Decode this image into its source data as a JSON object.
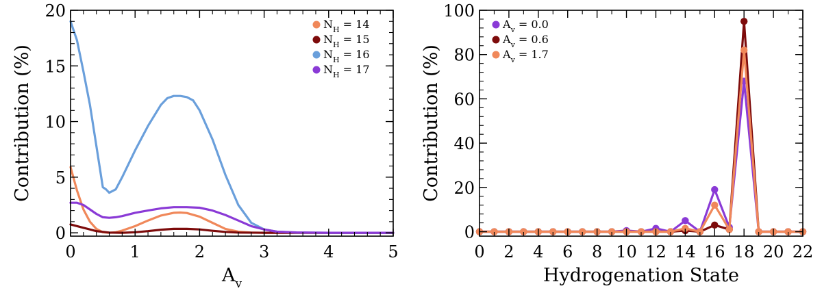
{
  "chart_data": [
    {
      "type": "line",
      "xlabel": "A",
      "xlabel_sub": "v",
      "ylabel": "Contribution (%)",
      "xlim": [
        0,
        5
      ],
      "ylim": [
        -0.3,
        20
      ],
      "xticks": [
        "0",
        "1",
        "2",
        "3",
        "4",
        "5"
      ],
      "yticks": [
        "0",
        "5",
        "10",
        "15",
        "20"
      ],
      "legend_position": "top-right",
      "series": [
        {
          "name": "N_H = 14",
          "legend_main": "N",
          "legend_sub": "H",
          "legend_value": " = 14",
          "color": "#f0885a",
          "x": [
            0,
            0.1,
            0.2,
            0.3,
            0.4,
            0.5,
            0.6,
            0.7,
            0.8,
            1.0,
            1.2,
            1.4,
            1.6,
            1.7,
            1.8,
            2.0,
            2.2,
            2.4,
            2.6,
            2.8,
            3.0,
            3.5,
            4.0,
            4.5,
            5.0
          ],
          "y": [
            5.9,
            3.8,
            2.1,
            1.0,
            0.35,
            0.05,
            0.0,
            0.05,
            0.2,
            0.6,
            1.1,
            1.55,
            1.8,
            1.82,
            1.78,
            1.45,
            0.9,
            0.35,
            0.1,
            0.02,
            0.0,
            0.0,
            0.0,
            0.0,
            0.0
          ]
        },
        {
          "name": "N_H = 15",
          "legend_main": "N",
          "legend_sub": "H",
          "legend_value": " = 15",
          "color": "#7d0b0b",
          "x": [
            0,
            0.2,
            0.4,
            0.6,
            0.8,
            1.0,
            1.2,
            1.4,
            1.6,
            1.8,
            2.0,
            2.2,
            2.4,
            2.6,
            3.0,
            3.5,
            4.0,
            4.5,
            5.0
          ],
          "y": [
            0.75,
            0.45,
            0.15,
            0.02,
            0.0,
            0.05,
            0.15,
            0.28,
            0.35,
            0.35,
            0.3,
            0.18,
            0.08,
            0.02,
            0.0,
            0.0,
            0.0,
            0.0,
            0.0
          ]
        },
        {
          "name": "N_H = 16",
          "legend_main": "N",
          "legend_sub": "H",
          "legend_value": " = 16",
          "color": "#6a9fdb",
          "x": [
            0,
            0.1,
            0.2,
            0.3,
            0.4,
            0.5,
            0.55,
            0.6,
            0.7,
            0.8,
            1.0,
            1.2,
            1.4,
            1.5,
            1.6,
            1.7,
            1.8,
            1.9,
            2.0,
            2.2,
            2.4,
            2.6,
            2.8,
            3.0,
            3.2,
            3.5,
            4.0,
            4.5,
            5.0
          ],
          "y": [
            19.0,
            17.3,
            14.5,
            11.5,
            7.8,
            4.1,
            3.9,
            3.6,
            3.9,
            5.0,
            7.4,
            9.6,
            11.5,
            12.1,
            12.3,
            12.3,
            12.2,
            11.9,
            11.0,
            8.4,
            5.2,
            2.5,
            0.9,
            0.3,
            0.1,
            0.02,
            0.0,
            0.0,
            0.0
          ]
        },
        {
          "name": "N_H = 17",
          "legend_main": "N",
          "legend_sub": "H",
          "legend_value": " = 17",
          "color": "#8a3ad6",
          "x": [
            0,
            0.1,
            0.2,
            0.3,
            0.4,
            0.5,
            0.6,
            0.7,
            0.8,
            1.0,
            1.2,
            1.4,
            1.6,
            1.8,
            2.0,
            2.2,
            2.4,
            2.6,
            2.8,
            3.0,
            3.2,
            3.5,
            4.0,
            4.5,
            5.0
          ],
          "y": [
            2.7,
            2.7,
            2.5,
            2.1,
            1.7,
            1.4,
            1.35,
            1.4,
            1.5,
            1.8,
            2.0,
            2.2,
            2.3,
            2.3,
            2.25,
            2.0,
            1.6,
            1.1,
            0.6,
            0.3,
            0.1,
            0.03,
            0.0,
            0.0,
            0.0
          ]
        }
      ]
    },
    {
      "type": "line",
      "xlabel": "Hydrogenation State",
      "ylabel": "Contribution (%)",
      "xlim": [
        0,
        22
      ],
      "ylim": [
        -2,
        100
      ],
      "xticks": [
        "0",
        "2",
        "4",
        "6",
        "8",
        "10",
        "12",
        "14",
        "16",
        "18",
        "20",
        "22"
      ],
      "xticks_minor": [
        1,
        3,
        5,
        7,
        9,
        11,
        13,
        15,
        17,
        19,
        21
      ],
      "yticks": [
        "0",
        "20",
        "40",
        "60",
        "80",
        "100"
      ],
      "legend_position": "top-left",
      "markers": true,
      "x": [
        0,
        1,
        2,
        3,
        4,
        5,
        6,
        7,
        8,
        9,
        10,
        11,
        12,
        13,
        14,
        15,
        16,
        17,
        18,
        19,
        20,
        21,
        22
      ],
      "series": [
        {
          "name": "A_v = 0.0",
          "legend_main": "A",
          "legend_sub": "v",
          "legend_value": " = 0.0",
          "color": "#8a3ad6",
          "y": [
            0,
            0,
            0,
            0,
            0,
            0,
            0,
            0,
            0,
            0,
            0.5,
            0,
            1.5,
            0,
            5,
            0,
            19,
            2,
            68,
            0,
            0,
            0,
            0
          ]
        },
        {
          "name": "A_v = 0.6",
          "legend_main": "A",
          "legend_sub": "v",
          "legend_value": " = 0.6",
          "color": "#7d0b0b",
          "y": [
            0,
            0,
            0,
            0,
            0,
            0,
            0,
            0,
            0,
            0,
            0,
            0,
            0,
            0,
            0.5,
            0,
            3,
            1,
            95,
            0,
            0,
            0,
            0
          ]
        },
        {
          "name": "A_v = 1.7",
          "legend_main": "A",
          "legend_sub": "v",
          "legend_value": " = 1.7",
          "color": "#f0885a",
          "y": [
            0,
            0,
            0,
            0,
            0,
            0,
            0,
            0,
            0,
            0,
            0,
            0,
            0,
            0,
            1.5,
            0,
            12,
            1,
            82,
            0,
            0,
            0,
            0
          ]
        }
      ]
    }
  ]
}
